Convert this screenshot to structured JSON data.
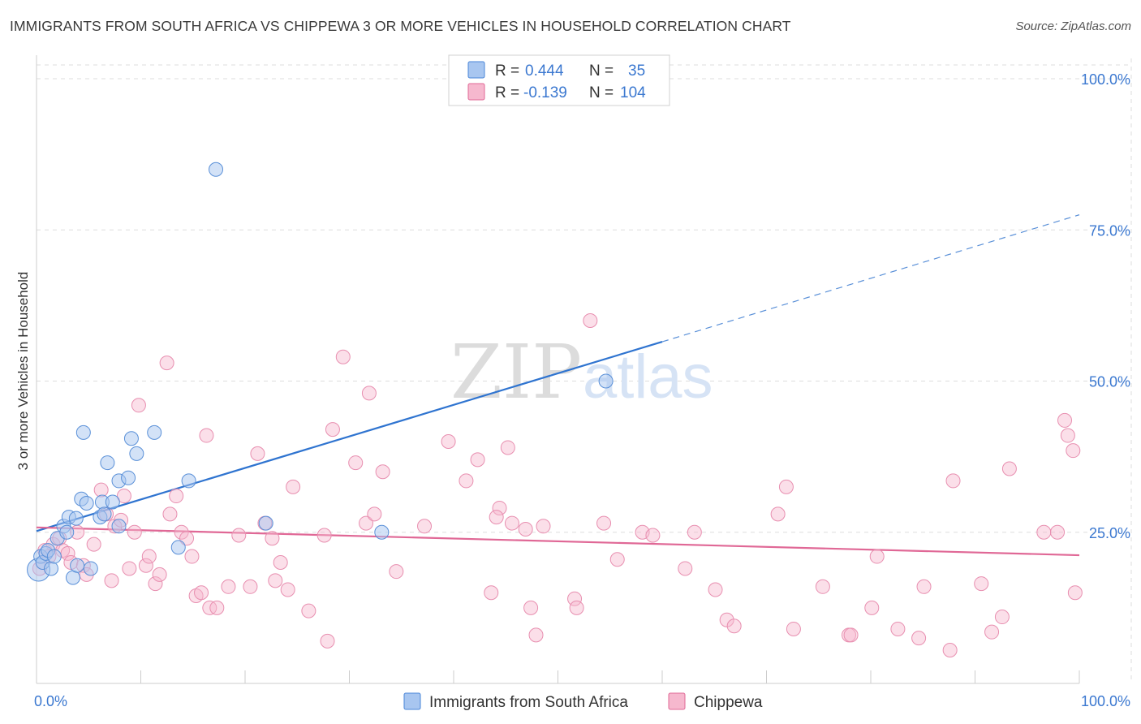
{
  "title": "IMMIGRANTS FROM SOUTH AFRICA VS CHIPPEWA 3 OR MORE VEHICLES IN HOUSEHOLD CORRELATION CHART",
  "source": "Source: ZipAtlas.com",
  "watermark": {
    "zip": "ZIP",
    "atlas": "atlas"
  },
  "colors": {
    "blue": "#4a86d8",
    "blue_fill": "#a8c6f0",
    "pink": "#e06896",
    "pink_fill": "#f6b8ce",
    "tick": "#3b78d0",
    "grid": "#dddddd"
  },
  "legend": {
    "r_label": "R =",
    "n_label": "N =",
    "rows": [
      {
        "r": "0.444",
        "n": "35"
      },
      {
        "r": "-0.139",
        "n": "104"
      }
    ]
  },
  "chart_data": {
    "type": "scatter",
    "ylabel": "3 or more Vehicles in Household",
    "xlabel": "",
    "xlim": [
      0,
      100
    ],
    "ylim": [
      0,
      100
    ],
    "x_tick_labels": [
      "0.0%",
      "100.0%"
    ],
    "y_tick_labels": [
      "100.0%",
      "75.0%",
      "50.0%",
      "25.0%"
    ],
    "y_ticks": [
      100,
      75,
      50,
      25
    ],
    "grid": true,
    "series": [
      {
        "name": "Immigrants from South Africa",
        "color": "#4a86d8",
        "trend": {
          "x0": 0,
          "y0": 25.2,
          "x1": 60,
          "y1": 56.5,
          "dash_to_x": 100,
          "dash_to_y": 77.5
        },
        "points": [
          [
            0.2,
            18.8
          ],
          [
            0.4,
            21
          ],
          [
            0.6,
            20
          ],
          [
            0.9,
            21.5
          ],
          [
            1.1,
            22
          ],
          [
            1.4,
            19
          ],
          [
            1.7,
            21
          ],
          [
            2,
            24
          ],
          [
            2.6,
            26
          ],
          [
            2.9,
            25
          ],
          [
            3.1,
            27.5
          ],
          [
            3.5,
            17.5
          ],
          [
            3.8,
            27.3
          ],
          [
            3.9,
            19.5
          ],
          [
            4.3,
            30.5
          ],
          [
            4.5,
            41.5
          ],
          [
            4.8,
            29.8
          ],
          [
            5.2,
            19
          ],
          [
            6.1,
            27.5
          ],
          [
            6.3,
            30
          ],
          [
            6.5,
            28
          ],
          [
            6.8,
            36.5
          ],
          [
            7.3,
            30
          ],
          [
            7.9,
            33.5
          ],
          [
            7.9,
            26
          ],
          [
            8.8,
            34
          ],
          [
            9.1,
            40.5
          ],
          [
            9.6,
            38
          ],
          [
            11.3,
            41.5
          ],
          [
            13.6,
            22.5
          ],
          [
            14.6,
            33.5
          ],
          [
            17.2,
            85
          ],
          [
            22,
            26.5
          ],
          [
            33.1,
            25
          ],
          [
            54.6,
            50
          ]
        ]
      },
      {
        "name": "Chippewa",
        "color": "#e06896",
        "trend": {
          "x0": 0,
          "y0": 25.8,
          "x1": 100,
          "y1": 21.2
        },
        "points": [
          [
            0.3,
            19
          ],
          [
            0.8,
            22
          ],
          [
            1.2,
            21
          ],
          [
            1.6,
            23
          ],
          [
            2.2,
            24
          ],
          [
            2.5,
            22
          ],
          [
            3,
            21.5
          ],
          [
            3.3,
            20
          ],
          [
            3.9,
            25
          ],
          [
            4.5,
            19.5
          ],
          [
            4.8,
            18
          ],
          [
            5.5,
            23
          ],
          [
            6.2,
            32
          ],
          [
            6.7,
            28
          ],
          [
            7.2,
            17
          ],
          [
            7.5,
            26
          ],
          [
            8.1,
            27
          ],
          [
            8.4,
            31
          ],
          [
            8.9,
            19
          ],
          [
            9.4,
            25
          ],
          [
            9.8,
            46
          ],
          [
            10.5,
            19.5
          ],
          [
            10.8,
            21
          ],
          [
            11.4,
            16.5
          ],
          [
            11.8,
            18
          ],
          [
            12.5,
            53
          ],
          [
            12.8,
            28
          ],
          [
            13.4,
            31
          ],
          [
            13.9,
            25
          ],
          [
            14.4,
            24
          ],
          [
            14.9,
            21
          ],
          [
            15.3,
            14.5
          ],
          [
            15.8,
            15
          ],
          [
            16.3,
            41
          ],
          [
            16.6,
            12.5
          ],
          [
            17.3,
            12.5
          ],
          [
            18.4,
            16
          ],
          [
            19.4,
            24.5
          ],
          [
            20.5,
            16
          ],
          [
            21.2,
            38
          ],
          [
            21.9,
            26.5
          ],
          [
            22.6,
            24
          ],
          [
            22.9,
            17
          ],
          [
            23.4,
            20
          ],
          [
            24.1,
            15.5
          ],
          [
            24.6,
            32.5
          ],
          [
            26.1,
            12
          ],
          [
            27.6,
            24.5
          ],
          [
            27.9,
            7
          ],
          [
            28.4,
            42
          ],
          [
            29.4,
            54
          ],
          [
            30.6,
            36.5
          ],
          [
            31.6,
            26.5
          ],
          [
            31.9,
            48
          ],
          [
            32.4,
            28
          ],
          [
            33.2,
            35
          ],
          [
            34.5,
            18.5
          ],
          [
            37.2,
            26
          ],
          [
            39.5,
            40
          ],
          [
            41.2,
            33.5
          ],
          [
            42.3,
            37
          ],
          [
            43.6,
            15
          ],
          [
            44.4,
            29
          ],
          [
            44.1,
            27.5
          ],
          [
            45.2,
            39
          ],
          [
            45.6,
            26.5
          ],
          [
            46.9,
            25.5
          ],
          [
            47.4,
            12.5
          ],
          [
            47.9,
            8
          ],
          [
            48.6,
            26
          ],
          [
            51.6,
            14
          ],
          [
            51.8,
            12.5
          ],
          [
            53.1,
            60
          ],
          [
            54.4,
            26.5
          ],
          [
            55.7,
            20.5
          ],
          [
            58.1,
            25
          ],
          [
            59.1,
            24.5
          ],
          [
            62.2,
            19
          ],
          [
            63.1,
            25
          ],
          [
            65.1,
            15.5
          ],
          [
            66.2,
            10.5
          ],
          [
            66.9,
            9.5
          ],
          [
            71.1,
            28
          ],
          [
            71.9,
            32.5
          ],
          [
            72.6,
            9
          ],
          [
            75.4,
            16
          ],
          [
            77.9,
            8
          ],
          [
            78.1,
            8
          ],
          [
            80.1,
            12.5
          ],
          [
            80.6,
            21
          ],
          [
            82.6,
            9
          ],
          [
            84.6,
            7.5
          ],
          [
            85.1,
            16
          ],
          [
            87.6,
            5.5
          ],
          [
            87.9,
            33.5
          ],
          [
            90.6,
            16.5
          ],
          [
            91.6,
            8.5
          ],
          [
            92.6,
            11
          ],
          [
            93.3,
            35.5
          ],
          [
            96.6,
            25
          ],
          [
            97.9,
            25
          ],
          [
            98.6,
            43.5
          ],
          [
            98.9,
            41
          ],
          [
            99.4,
            38.5
          ],
          [
            99.6,
            15
          ]
        ]
      }
    ]
  },
  "bottom_legend": [
    {
      "label": "Immigrants from South Africa"
    },
    {
      "label": "Chippewa"
    }
  ]
}
